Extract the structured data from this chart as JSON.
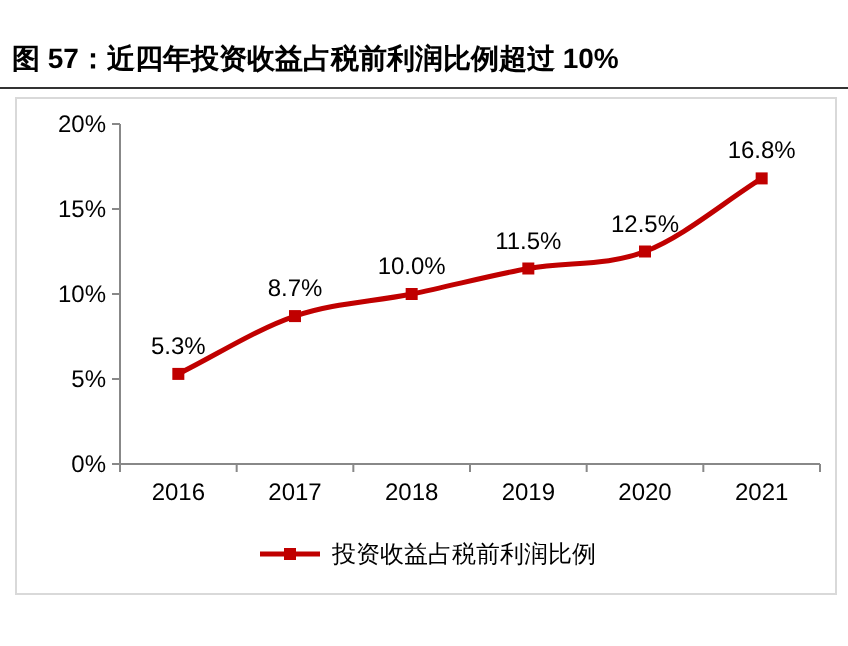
{
  "chart_data": {
    "type": "line",
    "title": "图 57：近四年投资收益占税前利润比例超过 10%",
    "categories": [
      "2016",
      "2017",
      "2018",
      "2019",
      "2020",
      "2021"
    ],
    "series": [
      {
        "name": "投资收益占税前利润比例",
        "color": "#c00000",
        "values": [
          5.3,
          8.7,
          10.0,
          11.5,
          12.5,
          16.8
        ],
        "value_labels": [
          "5.3%",
          "8.7%",
          "10.0%",
          "11.5%",
          "12.5%",
          "16.8%"
        ]
      }
    ],
    "ylim": [
      0,
      20
    ],
    "yticks": [
      {
        "value": 0,
        "label": "0%"
      },
      {
        "value": 5,
        "label": "5%"
      },
      {
        "value": 10,
        "label": "10%"
      },
      {
        "value": 15,
        "label": "15%"
      },
      {
        "value": 20,
        "label": "20%"
      }
    ],
    "marker": "square",
    "line_style": "solid",
    "grid": false,
    "legend": "bottom"
  }
}
